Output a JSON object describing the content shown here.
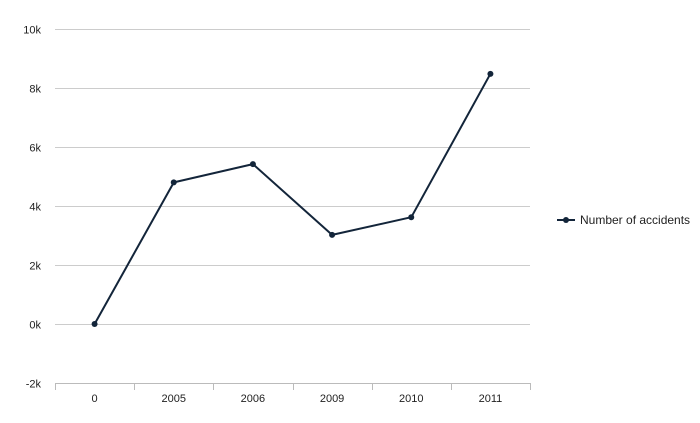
{
  "chart_data": {
    "type": "line",
    "categories": [
      "0",
      "2005",
      "2006",
      "2009",
      "2010",
      "2011"
    ],
    "series": [
      {
        "name": "Number of accidents",
        "values": [
          0,
          4800,
          5420,
          3020,
          3620,
          8480
        ]
      }
    ],
    "ylim": [
      -2000,
      10000
    ],
    "yticks": [
      -2000,
      0,
      2000,
      4000,
      6000,
      8000,
      10000
    ],
    "ytick_labels": [
      "-2k",
      "0k",
      "2k",
      "4k",
      "6k",
      "8k",
      "10k"
    ],
    "grid": true,
    "legend": "right",
    "colors": {
      "line": "#13253a",
      "grid": "#cccccc",
      "axis": "#bbbbbb"
    }
  }
}
